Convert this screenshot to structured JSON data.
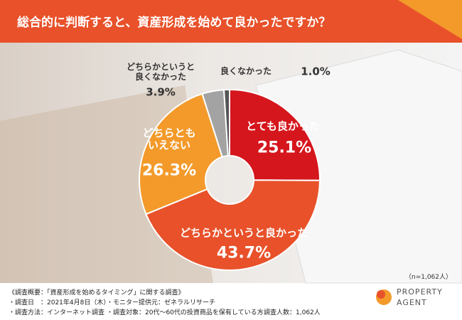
{
  "chart_data": {
    "type": "donut",
    "title": "総合的に判断すると、資産形成を始めて良かったですか？",
    "categories": [
      "とても良かった",
      "どちらかというと良かった",
      "どちらとも\nいえない",
      "どちらかというと\n良くなかった",
      "良くなかった"
    ],
    "values": [
      25.1,
      43.7,
      26.3,
      3.9,
      1.0
    ],
    "value_labels": [
      "25.1%",
      "43.7%",
      "26.3%",
      "3.9%",
      "1.0%"
    ],
    "colors": [
      "#d5161c",
      "#e8512a",
      "#f39a2b",
      "#a3a3a3",
      "#555555"
    ],
    "note": "（n=1,062人）",
    "survey": {
      "heading": "《調査概要：「資産形成を始めるタイミング」に関する調査》",
      "items": [
        "・調査日　：2021年4月8日（木）",
        "・モニター提供元：ゼネラルリサーチ",
        "・調査方法：インターネット調査",
        "・調査対象：20代〜60代の投資商品を保有している方",
        "・調査人数：1,062人"
      ]
    },
    "logo": {
      "line1": "PROPERTY",
      "line2": "AGENT"
    }
  }
}
